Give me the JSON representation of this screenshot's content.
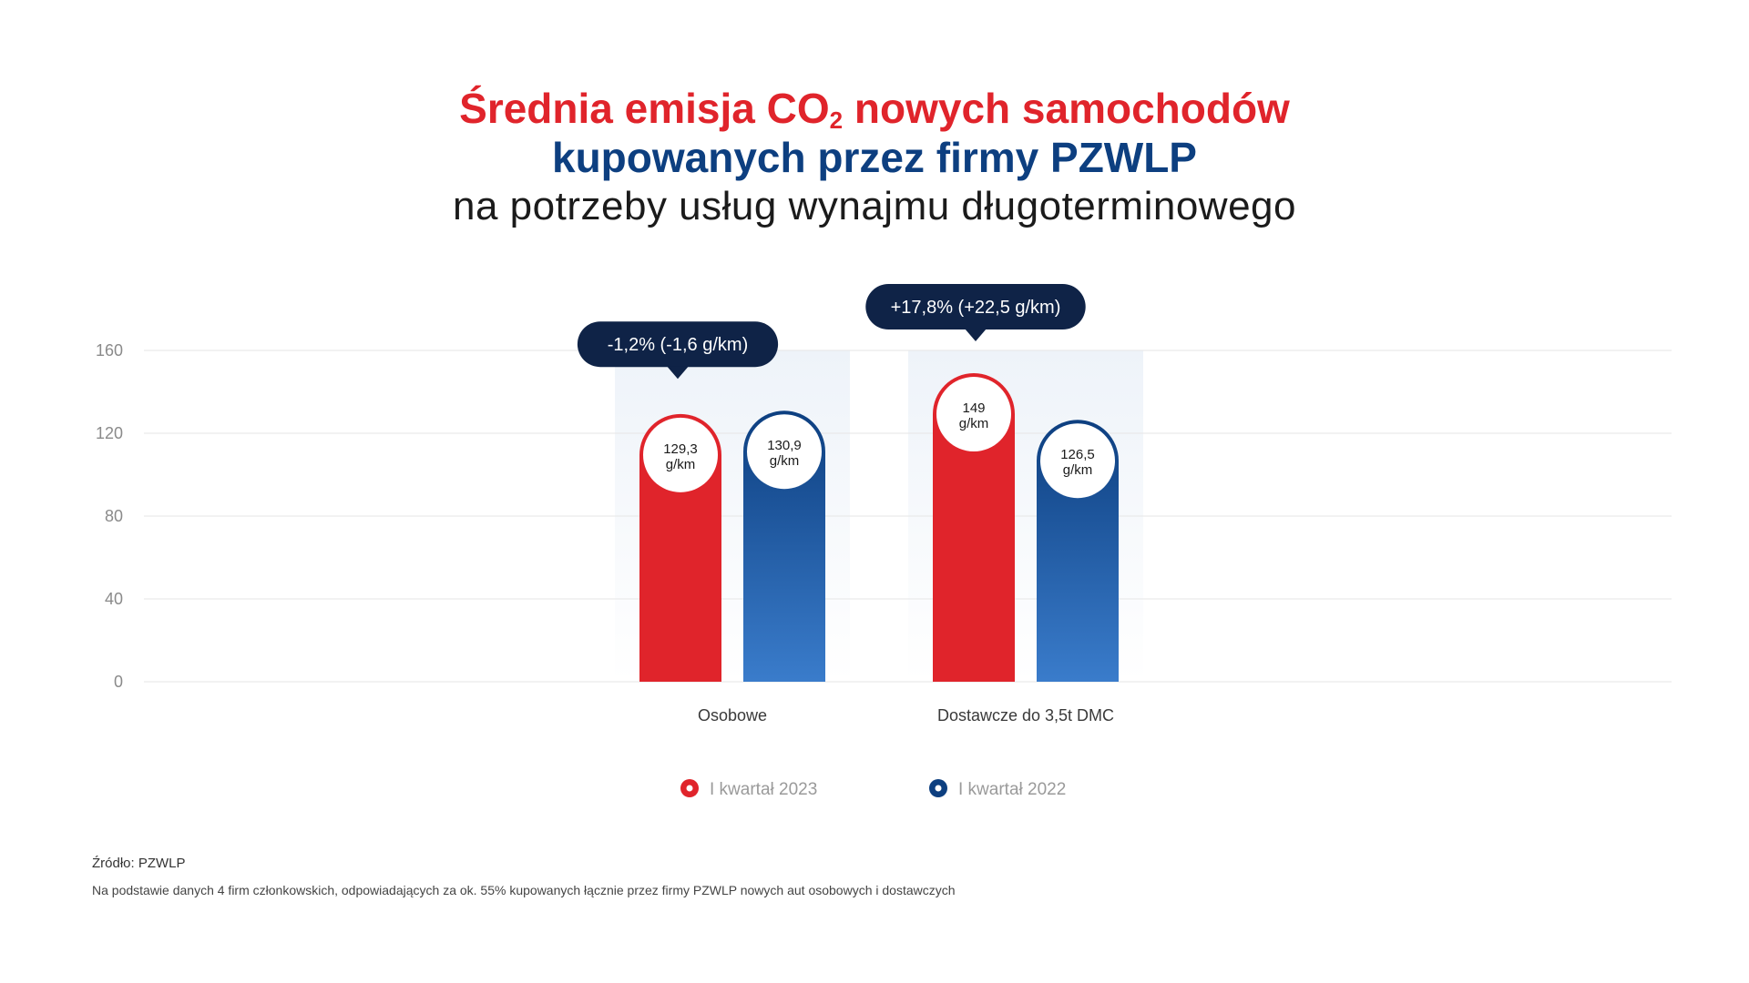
{
  "title": {
    "line1_a": "Średnia emisja CO",
    "line1_sub": "2",
    "line1_b": " nowych samochodów",
    "line2": "kupowanych przez firmy PZWLP",
    "line3": "na potrzeby usług wynajmu długoterminowego"
  },
  "chart_data": {
    "type": "bar",
    "categories": [
      "Osobowe",
      "Dostawcze do 3,5t DMC"
    ],
    "series": [
      {
        "name": "I kwartał 2023",
        "values": [
          129.3,
          149
        ],
        "color": "#e0242b",
        "labels": [
          "129,3",
          "149"
        ]
      },
      {
        "name": "I kwartał 2022",
        "values": [
          130.9,
          126.5
        ],
        "color": "#0d3f80",
        "labels": [
          "130,9",
          "126,5"
        ]
      }
    ],
    "value_unit": "g/km",
    "change_annotations": [
      "-1,2% (-1,6 g/km)",
      "+17,8% (+22,5 g/km)"
    ],
    "yticks": [
      "0",
      "40",
      "80",
      "120",
      "160"
    ],
    "ylim": [
      0,
      160
    ],
    "grid": true,
    "legend_position": "bottom-center"
  },
  "colors": {
    "red": "#e0242b",
    "blue_dark": "#0d3f80",
    "blue_light": "#3a7ccb",
    "callout": "#0f2347",
    "band": "#eef3f9",
    "grid": "#e6e6e6",
    "tick": "#8a8a8a"
  },
  "footer": {
    "source": "Źródło: PZWLP",
    "note": "Na podstawie danych 4 firm członkowskich, odpowiadających za ok. 55% kupowanych łącznie przez firmy PZWLP nowych aut osobowych i dostawczych"
  }
}
